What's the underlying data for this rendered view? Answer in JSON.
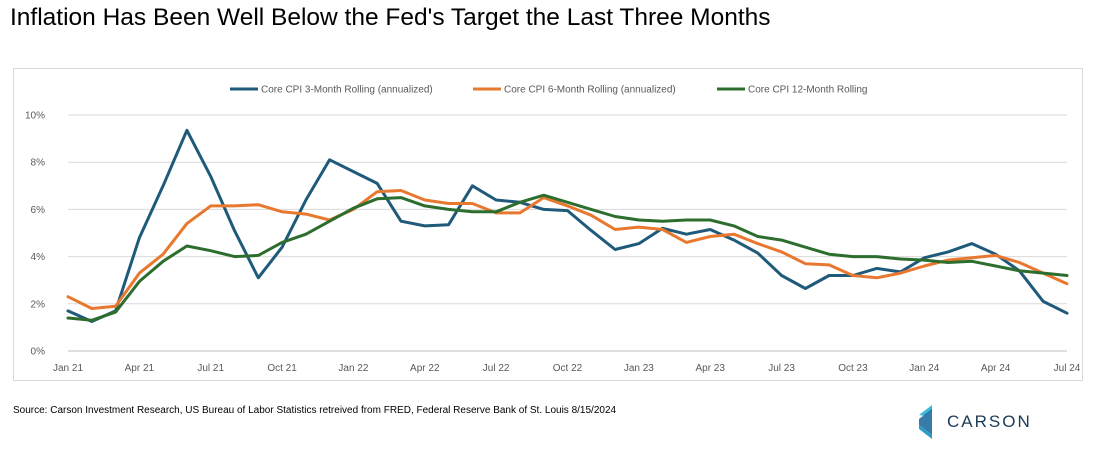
{
  "title": "Inflation Has Been Well Below the Fed's Target the Last Three Months",
  "source": "Source: Carson Investment Research, US Bureau of Labor Statistics retreived from FRED, Federal Reserve Bank of St. Louis  8/15/2024",
  "logo": {
    "text": "CARSON",
    "icon": "carson-chevron-logo-icon"
  },
  "chart_data": {
    "type": "line",
    "title": "",
    "xlabel": "",
    "ylabel": "",
    "ylim": [
      0,
      10
    ],
    "yticks": [
      0,
      2,
      4,
      6,
      8,
      10
    ],
    "ytick_labels": [
      "0%",
      "2%",
      "4%",
      "6%",
      "8%",
      "10%"
    ],
    "grid": true,
    "legend_position": "top-center",
    "x": [
      "Jan 21",
      "Feb 21",
      "Mar 21",
      "Apr 21",
      "May 21",
      "Jun 21",
      "Jul 21",
      "Aug 21",
      "Sep 21",
      "Oct 21",
      "Nov 21",
      "Dec 21",
      "Jan 22",
      "Feb 22",
      "Mar 22",
      "Apr 22",
      "May 22",
      "Jun 22",
      "Jul 22",
      "Aug 22",
      "Sep 22",
      "Oct 22",
      "Nov 22",
      "Dec 22",
      "Jan 23",
      "Feb 23",
      "Mar 23",
      "Apr 23",
      "May 23",
      "Jun 23",
      "Jul 23",
      "Aug 23",
      "Sep 23",
      "Oct 23",
      "Nov 23",
      "Dec 23",
      "Jan 24",
      "Feb 24",
      "Mar 24",
      "Apr 24",
      "May 24",
      "Jun 24",
      "Jul 24"
    ],
    "xtick_labels": [
      "Jan 21",
      "",
      "",
      "Apr 21",
      "",
      "",
      "Jul 21",
      "",
      "",
      "Oct 21",
      "",
      "",
      "Jan 22",
      "",
      "",
      "Apr 22",
      "",
      "",
      "Jul 22",
      "",
      "",
      "Oct 22",
      "",
      "",
      "Jan 23",
      "",
      "",
      "Apr 23",
      "",
      "",
      "Jul 23",
      "",
      "",
      "Oct 23",
      "",
      "",
      "Jan 24",
      "",
      "",
      "Apr 24",
      "",
      "",
      "Jul 24"
    ],
    "series": [
      {
        "name": "Core CPI 3-Month Rolling (annualized)",
        "color": "#1f5a7a",
        "values": [
          1.7,
          1.25,
          1.7,
          4.8,
          7.0,
          9.35,
          7.4,
          5.1,
          3.1,
          4.4,
          6.4,
          8.1,
          7.6,
          7.1,
          5.5,
          5.3,
          5.35,
          7.0,
          6.4,
          6.3,
          6.0,
          5.95,
          5.1,
          4.3,
          4.55,
          5.2,
          4.95,
          5.15,
          4.7,
          4.15,
          3.2,
          2.65,
          3.2,
          3.2,
          3.5,
          3.35,
          3.95,
          4.2,
          4.55,
          4.1,
          3.4,
          2.1,
          1.6
        ]
      },
      {
        "name": "Core CPI 6-Month Rolling (annualized)",
        "color": "#e8782f",
        "values": [
          2.3,
          1.8,
          1.9,
          3.3,
          4.1,
          5.4,
          6.15,
          6.15,
          6.2,
          5.9,
          5.8,
          5.55,
          6.0,
          6.75,
          6.8,
          6.4,
          6.25,
          6.25,
          5.85,
          5.85,
          6.5,
          6.15,
          5.75,
          5.15,
          5.25,
          5.15,
          4.6,
          4.85,
          4.95,
          4.55,
          4.2,
          3.7,
          3.65,
          3.2,
          3.1,
          3.3,
          3.6,
          3.85,
          3.95,
          4.05,
          3.75,
          3.3,
          2.85
        ]
      },
      {
        "name": "Core CPI 12-Month Rolling",
        "color": "#2d6e2f",
        "values": [
          1.4,
          1.3,
          1.65,
          2.95,
          3.8,
          4.45,
          4.25,
          4.0,
          4.05,
          4.6,
          4.95,
          5.5,
          6.05,
          6.45,
          6.5,
          6.15,
          6.0,
          5.9,
          5.9,
          6.3,
          6.6,
          6.3,
          6.0,
          5.7,
          5.55,
          5.5,
          5.55,
          5.55,
          5.3,
          4.85,
          4.7,
          4.4,
          4.1,
          4.0,
          4.0,
          3.9,
          3.85,
          3.75,
          3.8,
          3.6,
          3.4,
          3.3,
          3.2
        ]
      }
    ]
  }
}
